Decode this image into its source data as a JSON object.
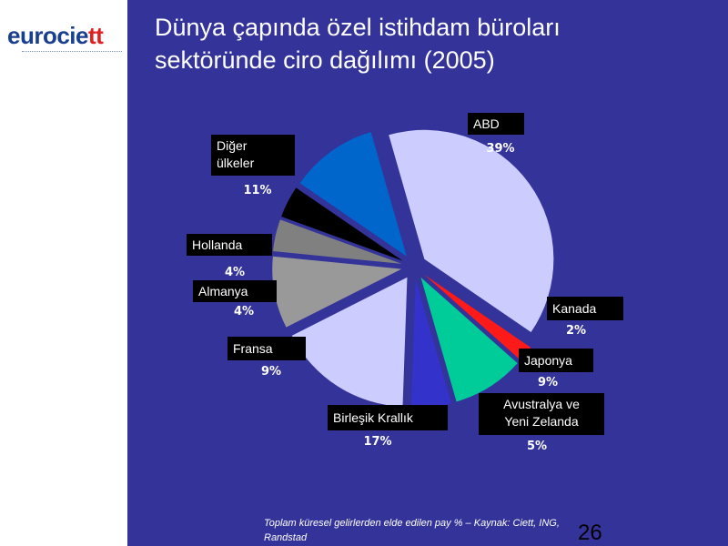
{
  "logo": {
    "text_main": "eurocie",
    "text_accent": "tt"
  },
  "title_line1": "Dünya çapında özel istihdam büroları",
  "title_line2": "sektöründe ciro dağılımı (2005)",
  "footnote": "Toplam küresel gelirlerden elde edilen pay % – Kaynak: Ciett, ING, Randstad",
  "page_number": "26",
  "colors": {
    "background": "#333399",
    "label_box": "#000000",
    "label_text": "#ffffff"
  },
  "chart_data": {
    "type": "pie",
    "title": "Dünya çapında özel istihdam büroları sektöründe ciro dağılımı (2005)",
    "slices": [
      {
        "label": "ABD",
        "percent_label": "39%",
        "value": 39,
        "color": "#ccccff"
      },
      {
        "label": "Kanada",
        "percent_label": "2%",
        "value": 2,
        "color": "#ff1a1a"
      },
      {
        "label": "Japonya",
        "percent_label": "9%",
        "value": 9,
        "color": "#00cc99"
      },
      {
        "label": "Avustralya ve Yeni Zelanda",
        "percent_label": "5%",
        "value": 5,
        "color": "#3333cc"
      },
      {
        "label": "Birleşik Krallık",
        "percent_label": "17%",
        "value": 17,
        "color": "#ccccff"
      },
      {
        "label": "Fransa",
        "percent_label": "9%",
        "value": 9,
        "color": "#999999"
      },
      {
        "label": "Almanya",
        "percent_label": "4%",
        "value": 4,
        "color": "#808080"
      },
      {
        "label": "Hollanda",
        "percent_label": "4%",
        "value": 4,
        "color": "#000000"
      },
      {
        "label": "Diğer ülkeler",
        "percent_label": "11%",
        "value": 11,
        "color": "#0066cc"
      }
    ]
  }
}
